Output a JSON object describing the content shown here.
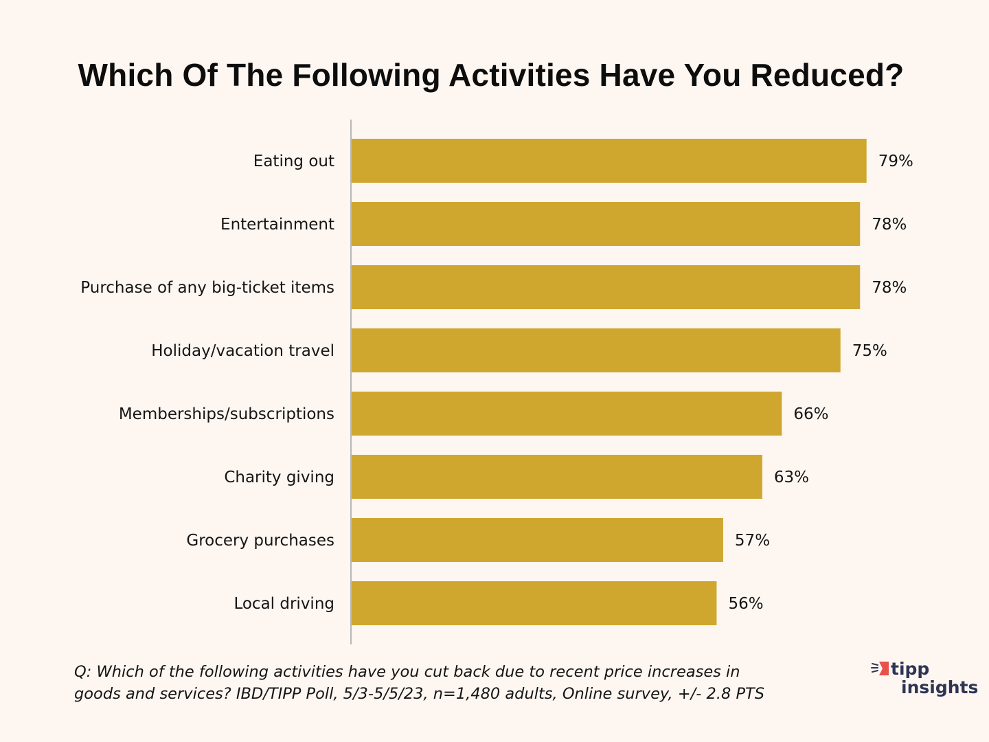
{
  "chart_data": {
    "type": "bar",
    "orientation": "horizontal",
    "title": "Which Of The Following Activities Have You Reduced?",
    "categories": [
      "Eating out",
      "Entertainment",
      "Purchase of any big-ticket items",
      "Holiday/vacation travel",
      "Memberships/subscriptions",
      "Charity giving",
      "Grocery purchases",
      "Local driving"
    ],
    "values": [
      79,
      78,
      78,
      75,
      66,
      63,
      57,
      56
    ],
    "value_labels": [
      "79%",
      "78%",
      "78%",
      "75%",
      "66%",
      "63%",
      "57%",
      "56%"
    ],
    "xlabel": "",
    "ylabel": "",
    "xlim": [
      0,
      100
    ],
    "grid": false,
    "legend": "none",
    "bar_color": "#cfa72f",
    "axis_color": "#b8b8b8"
  },
  "footnote": {
    "line1": "Q:  Which of the following activities have you cut back due to recent price increases in",
    "line2": "goods and services? IBD/TIPP Poll, 5/3-5/5/23, n=1,480 adults, Online survey, +/- 2.8 PTS"
  },
  "logo": {
    "word1": "tipp",
    "word2": "insights",
    "accent_color": "#e8524a",
    "text_color": "#2e3452"
  },
  "background_color": "#fdf6f1"
}
